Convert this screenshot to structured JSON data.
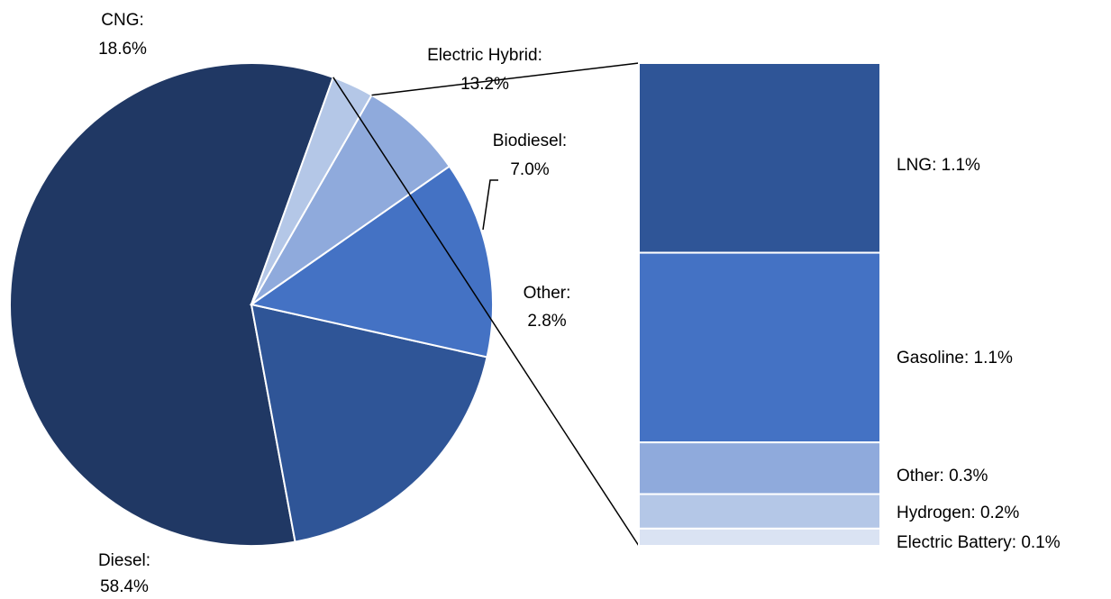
{
  "chart_data": [
    {
      "type": "pie",
      "slices": [
        {
          "label": "Diesel",
          "value": 58.4,
          "display": "58.4%",
          "color": "#203864"
        },
        {
          "label": "CNG",
          "value": 18.6,
          "display": "18.6%",
          "color": "#2F5597"
        },
        {
          "label": "Electric Hybrid",
          "value": 13.2,
          "display": "13.2%",
          "color": "#4472C4"
        },
        {
          "label": "Biodiesel",
          "value": 7.0,
          "display": "7.0%",
          "color": "#8FAADC"
        },
        {
          "label": "Other",
          "value": 2.8,
          "display": "2.8%",
          "color": "#B4C7E7"
        }
      ]
    },
    {
      "type": "bar",
      "stacked": true,
      "breakdown_of": "Other",
      "segments": [
        {
          "label": "LNG",
          "value": 1.1,
          "display": "1.1%",
          "color": "#2F5597"
        },
        {
          "label": "Gasoline",
          "value": 1.1,
          "display": "1.1%",
          "color": "#4472C4"
        },
        {
          "label": "Other",
          "value": 0.3,
          "display": "0.3%",
          "color": "#8FAADC"
        },
        {
          "label": "Hydrogen",
          "value": 0.2,
          "display": "0.2%",
          "color": "#B4C7E7"
        },
        {
          "label": "Electric Battery",
          "value": 0.1,
          "display": "0.1%",
          "color": "#DAE3F3"
        }
      ]
    }
  ]
}
